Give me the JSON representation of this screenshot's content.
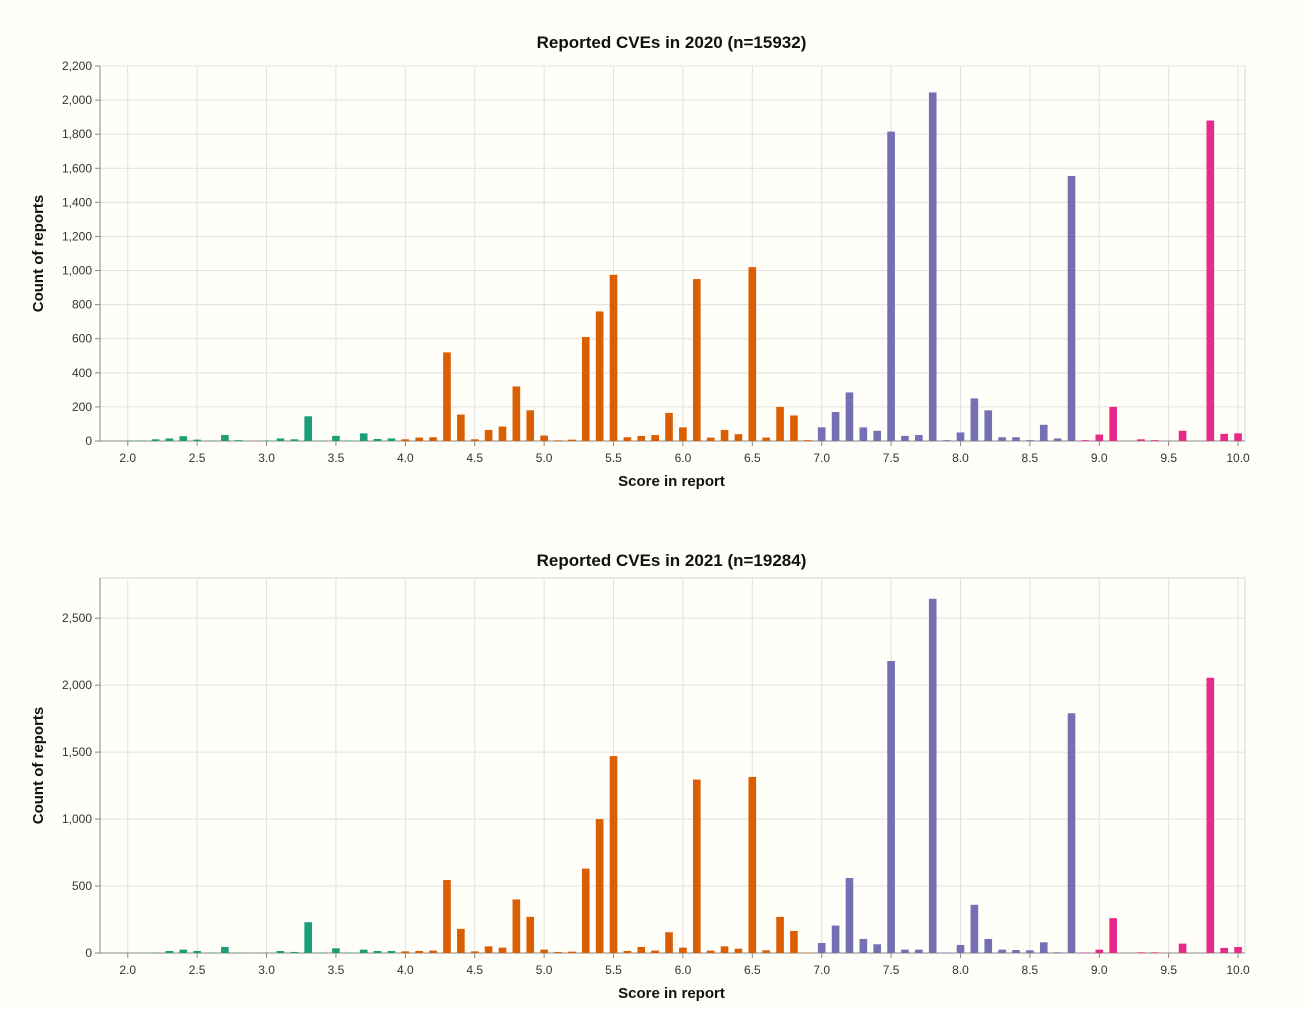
{
  "chart_data": [
    {
      "type": "bar",
      "title": "Reported CVEs in 2020 (n=15932)",
      "xlabel": "Score in report",
      "ylabel": "Count of reports",
      "xlim": [
        1.8,
        10.05
      ],
      "ylim": [
        0,
        2200
      ],
      "x_ticks": [
        "2.0",
        "2.5",
        "3.0",
        "3.5",
        "4.0",
        "4.5",
        "5.0",
        "5.5",
        "6.0",
        "6.5",
        "7.0",
        "7.5",
        "8.0",
        "8.5",
        "9.0",
        "9.5",
        "10.0"
      ],
      "y_ticks": [
        "0",
        "200",
        "400",
        "600",
        "800",
        "1,000",
        "1,200",
        "1,400",
        "1,600",
        "1,800",
        "2,000",
        "2,200"
      ],
      "grid": true,
      "colors": {
        "low": "#1b9e77",
        "medium": "#d95f02",
        "high": "#7570b3",
        "critical": "#e7298a"
      },
      "series": [
        {
          "x": [
            2.0,
            2.1,
            2.2,
            2.3,
            2.4,
            2.5,
            2.6,
            2.7,
            2.8,
            2.9,
            3.0,
            3.1,
            3.2,
            3.3,
            3.4,
            3.5,
            3.6,
            3.7,
            3.8,
            3.9
          ],
          "values": [
            2,
            3,
            10,
            15,
            28,
            8,
            2,
            35,
            5,
            0,
            3,
            15,
            10,
            145,
            2,
            30,
            3,
            45,
            12,
            15
          ]
        },
        {
          "x": [
            4.0,
            4.1,
            4.2,
            4.3,
            4.4,
            4.5,
            4.6,
            4.7,
            4.8,
            4.9,
            5.0,
            5.1,
            5.2,
            5.3,
            5.4,
            5.5,
            5.6,
            5.7,
            5.8,
            5.9,
            6.0,
            6.1,
            6.2,
            6.3,
            6.4,
            6.5,
            6.6,
            6.7,
            6.8,
            6.9
          ],
          "values": [
            10,
            20,
            22,
            520,
            155,
            10,
            65,
            85,
            320,
            180,
            32,
            4,
            8,
            610,
            760,
            975,
            22,
            30,
            35,
            165,
            80,
            950,
            20,
            65,
            40,
            1020,
            20,
            200,
            150,
            5
          ]
        },
        {
          "x": [
            7.0,
            7.1,
            7.2,
            7.3,
            7.4,
            7.5,
            7.6,
            7.7,
            7.8,
            7.9,
            8.0,
            8.1,
            8.2,
            8.3,
            8.4,
            8.5,
            8.6,
            8.7,
            8.8
          ],
          "values": [
            80,
            170,
            285,
            80,
            60,
            1815,
            30,
            35,
            2045,
            5,
            50,
            250,
            180,
            22,
            22,
            5,
            95,
            15,
            1555
          ]
        },
        {
          "x": [
            8.9,
            9.0,
            9.1,
            9.2,
            9.3,
            9.4,
            9.5,
            9.6,
            9.7,
            9.8,
            9.9,
            10.0
          ],
          "values": [
            5,
            38,
            200,
            0,
            10,
            5,
            0,
            60,
            0,
            1880,
            42,
            45
          ]
        }
      ]
    },
    {
      "type": "bar",
      "title": "Reported CVEs in 2021 (n=19284)",
      "xlabel": "Score in report",
      "ylabel": "Count of reports",
      "xlim": [
        1.8,
        10.05
      ],
      "ylim": [
        0,
        2800
      ],
      "x_ticks": [
        "2.0",
        "2.5",
        "3.0",
        "3.5",
        "4.0",
        "4.5",
        "5.0",
        "5.5",
        "6.0",
        "6.5",
        "7.0",
        "7.5",
        "8.0",
        "8.5",
        "9.0",
        "9.5",
        "10.0"
      ],
      "y_ticks": [
        "0",
        "500",
        "1,000",
        "1,500",
        "2,000",
        "2,500"
      ],
      "grid": true,
      "colors": {
        "low": "#1b9e77",
        "medium": "#d95f02",
        "high": "#7570b3",
        "critical": "#e7298a"
      },
      "series": [
        {
          "x": [
            2.0,
            2.1,
            2.2,
            2.3,
            2.4,
            2.5,
            2.6,
            2.7,
            2.8,
            2.9,
            3.0,
            3.1,
            3.2,
            3.3,
            3.4,
            3.5,
            3.6,
            3.7,
            3.8,
            3.9
          ],
          "values": [
            0,
            0,
            2,
            15,
            25,
            15,
            3,
            45,
            2,
            0,
            2,
            15,
            8,
            230,
            3,
            35,
            3,
            25,
            15,
            15
          ]
        },
        {
          "x": [
            4.0,
            4.1,
            4.2,
            4.3,
            4.4,
            4.5,
            4.6,
            4.7,
            4.8,
            4.9,
            5.0,
            5.1,
            5.2,
            5.3,
            5.4,
            5.5,
            5.6,
            5.7,
            5.8,
            5.9,
            6.0,
            6.1,
            6.2,
            6.3,
            6.4,
            6.5,
            6.6,
            6.7,
            6.8,
            6.9
          ],
          "values": [
            12,
            15,
            18,
            545,
            180,
            12,
            50,
            40,
            400,
            270,
            25,
            8,
            10,
            630,
            1000,
            1470,
            15,
            45,
            18,
            155,
            40,
            1295,
            18,
            50,
            32,
            1315,
            20,
            270,
            165,
            3
          ]
        },
        {
          "x": [
            7.0,
            7.1,
            7.2,
            7.3,
            7.4,
            7.5,
            7.6,
            7.7,
            7.8,
            7.9,
            8.0,
            8.1,
            8.2,
            8.3,
            8.4,
            8.5,
            8.6,
            8.7,
            8.8
          ],
          "values": [
            75,
            205,
            560,
            105,
            65,
            2180,
            25,
            25,
            2645,
            3,
            60,
            360,
            105,
            25,
            22,
            20,
            80,
            5,
            1790
          ]
        },
        {
          "x": [
            8.9,
            9.0,
            9.1,
            9.2,
            9.3,
            9.4,
            9.5,
            9.6,
            9.7,
            9.8,
            9.9,
            10.0
          ],
          "values": [
            3,
            25,
            260,
            0,
            5,
            5,
            0,
            70,
            0,
            2055,
            38,
            45
          ]
        }
      ]
    }
  ]
}
